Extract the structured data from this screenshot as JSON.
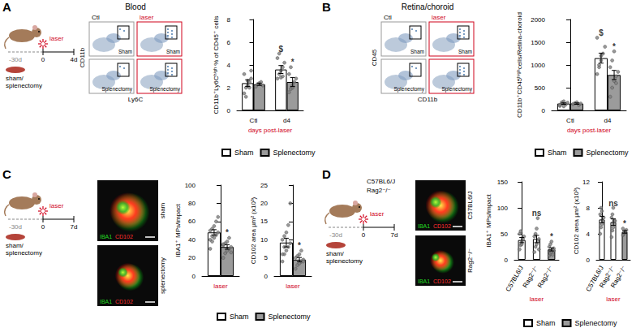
{
  "panels": [
    {
      "letter": "A",
      "title": "Blood",
      "timeline": {
        "start": "-30d",
        "zero": "0",
        "end": "4d",
        "event": "laser",
        "surgery": [
          "sham/",
          "splenectomy"
        ]
      },
      "flow": {
        "columns": [
          "Ctl",
          "laser"
        ],
        "rows": [
          "Sham",
          "Splenectomy"
        ],
        "x_label": "Ly6C",
        "y_label": "CD11b"
      }
    },
    {
      "letter": "B",
      "title": "Retina/choroid",
      "flow": {
        "columns": [
          "Ctl",
          "laser"
        ],
        "rows": [
          "Sham",
          "Splenectomy"
        ],
        "x_label": "CD11b",
        "y_label": "CD45"
      }
    },
    {
      "letter": "C",
      "timeline": {
        "start": "-30d",
        "zero": "0",
        "end": "7d",
        "event": "laser",
        "surgery": [
          "sham/",
          "splenectomy"
        ]
      },
      "images": {
        "rows": [
          "sham",
          "splenectomy"
        ],
        "stains": [
          "IBA1",
          "CD102"
        ]
      }
    },
    {
      "letter": "D",
      "strains": [
        "C57BL6/J",
        "Rag2⁻/⁻"
      ],
      "timeline": {
        "start": "-30d",
        "zero": "0",
        "end": "7d",
        "event": "laser",
        "surgery": [
          "sham/",
          "splenectomy"
        ]
      },
      "images": {
        "rows": [
          "C57BL6/J",
          "Rag2⁻/⁻"
        ],
        "stains": [
          "IBA1",
          "CD102"
        ]
      }
    }
  ],
  "chart_data": [
    {
      "type": "bar",
      "ylabel": "CD11b⁺Ly6Cʰⁱᵍʰ % of CD45⁺ cells",
      "categories": [
        "Ctl",
        "d4"
      ],
      "xlabel": "days post-laser",
      "ylim": [
        0,
        8
      ],
      "yticks": [
        0,
        2,
        4,
        6,
        8
      ],
      "grid": false,
      "legend": "bottom",
      "series": [
        {
          "name": "Sham",
          "color": "#ffffff",
          "values": [
            2.4,
            3.6
          ],
          "errors": [
            0.3,
            0.35
          ],
          "annotations": [
            null,
            "$"
          ],
          "points": [
            [
              1.5,
              2.0,
              2.2,
              2.5,
              2.8,
              3.2,
              1.2,
              2.6,
              2.0,
              3.5
            ],
            [
              2.8,
              3.2,
              3.5,
              3.8,
              4.2,
              4.6,
              5.0,
              2.9,
              3.0
            ]
          ]
        },
        {
          "name": "Splenectomy",
          "color": "#9b9b9b",
          "values": [
            2.3,
            2.5
          ],
          "errors": [
            0.1,
            0.4
          ],
          "annotations": [
            null,
            "*"
          ],
          "points": [
            [
              2.1,
              2.3,
              2.4,
              2.5,
              2.2
            ],
            [
              1.6,
              1.9,
              2.2,
              2.5,
              2.8,
              3.2,
              3.8,
              2.0
            ]
          ]
        }
      ]
    },
    {
      "type": "bar",
      "ylabel": "CD11b⁺CD45ʰⁱᵍʰcells/Retina-choroid",
      "categories": [
        "Ctl",
        "d4"
      ],
      "xlabel": "days post-laser",
      "ylim": [
        0,
        2000
      ],
      "yticks": [
        0,
        500,
        1000,
        1500,
        2000
      ],
      "grid": false,
      "legend": "bottom",
      "series": [
        {
          "name": "Sham",
          "color": "#ffffff",
          "values": [
            150,
            1150
          ],
          "errors": [
            15,
            110
          ],
          "annotations": [
            null,
            "$"
          ],
          "points": [
            [
              100,
              150,
              200,
              130,
              170,
              120,
              180,
              90
            ],
            [
              800,
              950,
              1100,
              1250,
              1400,
              1600,
              1000,
              1200
            ]
          ]
        },
        {
          "name": "Splenectomy",
          "color": "#9b9b9b",
          "values": [
            150,
            780
          ],
          "errors": [
            15,
            100
          ],
          "annotations": [
            null,
            "*"
          ],
          "points": [
            [
              140,
              160,
              180,
              120,
              150
            ],
            [
              300,
              500,
              650,
              750,
              850,
              950,
              1100,
              1300,
              600
            ]
          ]
        }
      ]
    },
    {
      "type": "bar",
      "ylabel": "IBA1⁺ MPs/impact",
      "categories": [
        "laser"
      ],
      "ylim": [
        0,
        100
      ],
      "yticks": [
        0,
        20,
        40,
        60,
        80,
        100
      ],
      "grid": false,
      "series": [
        {
          "name": "Sham",
          "color": "#ffffff",
          "values": [
            48
          ],
          "errors": [
            3
          ],
          "annotations": [
            null
          ],
          "points": [
            [
              30,
              38,
              42,
              45,
              48,
              50,
              52,
              55,
              60,
              65,
              40,
              44
            ]
          ]
        },
        {
          "name": "Splenectomy",
          "color": "#9b9b9b",
          "values": [
            32
          ],
          "errors": [
            2.5
          ],
          "annotations": [
            "*"
          ],
          "points": [
            [
              20,
              25,
              28,
              30,
              32,
              34,
              36,
              38,
              42,
              26,
              35
            ]
          ]
        }
      ]
    },
    {
      "type": "bar",
      "ylabel": "CD102 area µm² (x10³)",
      "categories": [
        "laser"
      ],
      "ylim": [
        0,
        25
      ],
      "yticks": [
        0,
        5,
        10,
        15,
        20,
        25
      ],
      "grid": false,
      "legend": "bottom",
      "series": [
        {
          "name": "Sham",
          "color": "#ffffff",
          "values": [
            9.2
          ],
          "errors": [
            1.2
          ],
          "annotations": [
            null
          ],
          "points": [
            [
              4,
              6,
              7,
              8,
              9,
              10,
              11,
              12,
              14,
              20,
              6,
              8
            ]
          ]
        },
        {
          "name": "Splenectomy",
          "color": "#9b9b9b",
          "values": [
            4.5
          ],
          "errors": [
            0.6
          ],
          "annotations": [
            "*"
          ],
          "points": [
            [
              2,
              3,
              3.5,
              4,
              4.5,
              5,
              5.5,
              6,
              7,
              4
            ]
          ]
        }
      ]
    },
    {
      "type": "bar",
      "ylabel": "IBA1⁺ MPs/impact",
      "categories": [
        "C57BL6/J",
        "Rag2⁻/⁻",
        "Rag2⁻/⁻"
      ],
      "xlabel": "laser",
      "ylim": [
        0,
        150
      ],
      "yticks": [
        0,
        50,
        100,
        150
      ],
      "grid": false,
      "series": [
        {
          "name": "Sham",
          "color": "#ffffff",
          "values": [
            38,
            40,
            null
          ],
          "errors": [
            5,
            7,
            null
          ],
          "annotations": [
            null,
            "ns",
            null
          ],
          "points": [
            [
              20,
              28,
              35,
              40,
              45,
              50,
              55,
              30
            ],
            [
              15,
              25,
              30,
              35,
              40,
              45,
              50,
              60,
              80,
              20
            ],
            null
          ]
        },
        {
          "name": "Splenectomy",
          "color": "#9b9b9b",
          "values": [
            null,
            null,
            20
          ],
          "errors": [
            null,
            null,
            3
          ],
          "annotations": [
            null,
            null,
            "*"
          ],
          "points": [
            null,
            null,
            [
              8,
              12,
              15,
              20,
              22,
              25,
              30,
              35,
              10,
              18
            ]
          ]
        }
      ]
    },
    {
      "type": "bar",
      "ylabel": "CD102 area µm² (x10³)",
      "categories": [
        "C57BL6/J",
        "Rag2⁻/⁻",
        "Rag2⁻/⁻"
      ],
      "xlabel": "laser",
      "ylim": [
        0,
        12
      ],
      "yticks": [
        0,
        4,
        8,
        12
      ],
      "grid": false,
      "legend": "bottom",
      "series": [
        {
          "name": "Sham",
          "color": "#ffffff",
          "values": [
            6.2,
            5.8,
            null
          ],
          "errors": [
            0.5,
            0.5,
            null
          ],
          "annotations": [
            null,
            "ns",
            null
          ],
          "points": [
            [
              4,
              5,
              5.5,
              6,
              6.5,
              7,
              8,
              7.5
            ],
            [
              3.5,
              4.5,
              5,
              5.5,
              6,
              6.5,
              7,
              8,
              6
            ],
            null
          ]
        },
        {
          "name": "Splenectomy",
          "color": "#9b9b9b",
          "values": [
            null,
            null,
            4.3
          ],
          "errors": [
            null,
            null,
            0.2
          ],
          "annotations": [
            null,
            null,
            "*"
          ],
          "points": [
            null,
            null,
            [
              3.8,
              4,
              4.2,
              4.4,
              4.6,
              4.8
            ]
          ]
        }
      ]
    }
  ]
}
